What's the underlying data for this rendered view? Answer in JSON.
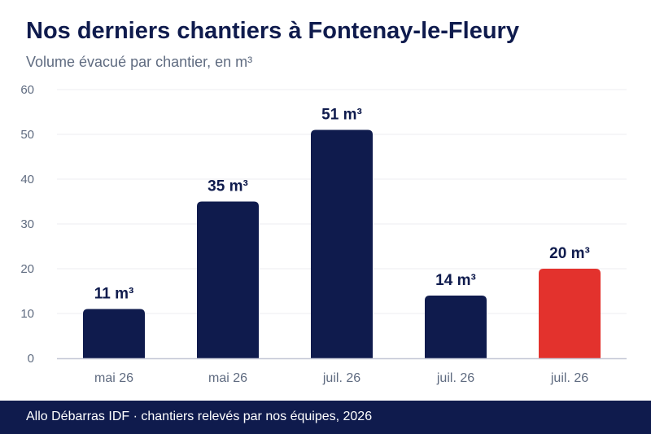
{
  "header": {
    "title": "Nos derniers chantiers à Fontenay-le-Fleury",
    "subtitle": "Volume évacué par chantier, en m³"
  },
  "footer": {
    "text": "Allo Débarras IDF · chantiers relevés par nos équipes, 2026"
  },
  "chart_data": {
    "type": "bar",
    "title": "Nos derniers chantiers à Fontenay-le-Fleury",
    "subtitle": "Volume évacué par chantier, en m³",
    "xlabel": "",
    "ylabel": "",
    "categories": [
      "mai 26",
      "mai 26",
      "juil. 26",
      "juil. 26",
      "juil. 26"
    ],
    "values": [
      11,
      35,
      51,
      14,
      20
    ],
    "value_labels": [
      "11 m³",
      "35 m³",
      "51 m³",
      "14 m³",
      "20 m³"
    ],
    "ylim": [
      0,
      60
    ],
    "yticks": [
      0,
      10,
      20,
      30,
      40,
      50,
      60
    ],
    "grid": true,
    "legend": "none",
    "colors": {
      "bar": "#0f1b4d",
      "highlight": "#e3322d",
      "grid": "#ececf2",
      "baseline": "#c5c8d6",
      "tick_text": "#5f6b80",
      "label_text": "#0f1b4d"
    },
    "highlight_index": 4
  }
}
